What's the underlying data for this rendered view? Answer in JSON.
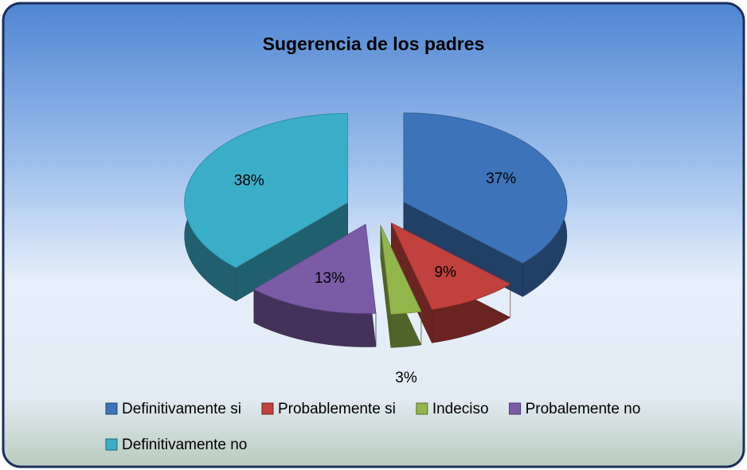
{
  "chart_data": {
    "type": "pie",
    "title": "Sugerencia de los padres",
    "categories": [
      "Definitivamente si",
      "Probablemente si",
      "Indeciso",
      "Probalemente no",
      "Definitivamente no"
    ],
    "values": [
      37,
      9,
      3,
      13,
      38
    ],
    "value_labels": [
      "37%",
      "9%",
      "3%",
      "13%",
      "38%"
    ],
    "colors": [
      "#3d73b9",
      "#c0413d",
      "#93b64a",
      "#7b5aa6",
      "#3aadc8"
    ],
    "legend": "bottom"
  }
}
